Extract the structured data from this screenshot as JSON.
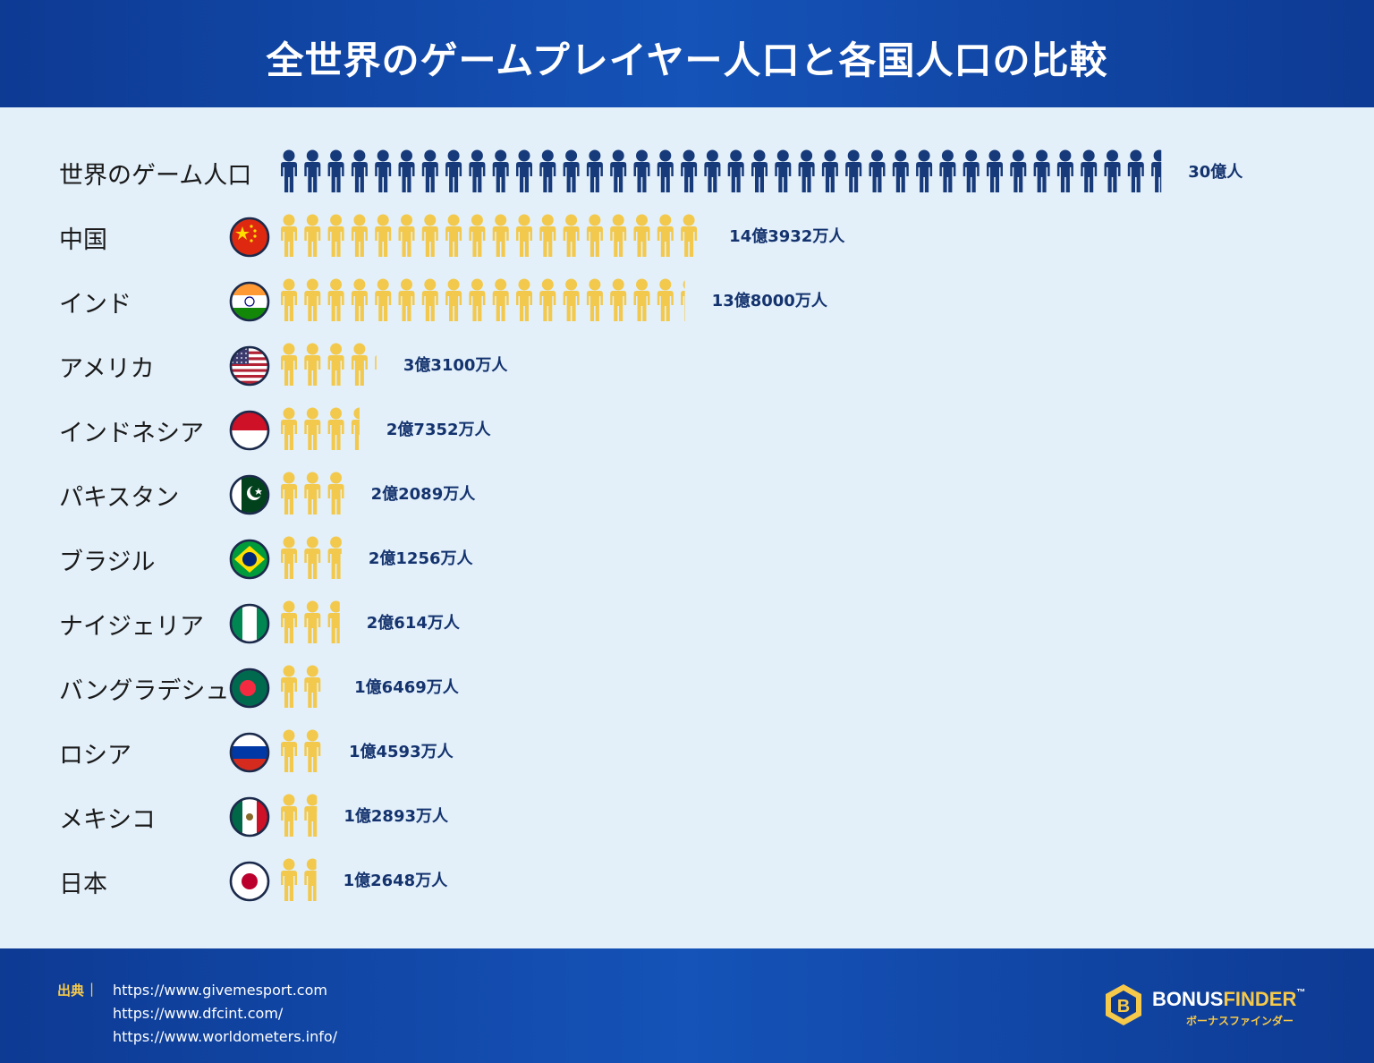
{
  "title": "全世界のゲームプレイヤー人口と各国人口の比較",
  "colors": {
    "header_bg": "#0d3a93",
    "chart_bg": "#e3f0fa",
    "world_icon": "#173a7a",
    "country_icon": "#f2c94c",
    "value_text": "#14336e",
    "source_label": "#f6c94a"
  },
  "chart_data": {
    "type": "pictogram-bar",
    "unit_per_icon_oku": 0.8,
    "rows": [
      {
        "label": "世界のゲーム人口",
        "value_oku": 30,
        "value_text": "30億人",
        "kind": "world",
        "flag": "none"
      },
      {
        "label": "中国",
        "value_oku": 14.3932,
        "value_text": "14億3932万人",
        "kind": "country",
        "flag": "china"
      },
      {
        "label": "インド",
        "value_oku": 13.8,
        "value_text": "13億8000万人",
        "kind": "country",
        "flag": "india"
      },
      {
        "label": "アメリカ",
        "value_oku": 3.31,
        "value_text": "3億3100万人",
        "kind": "country",
        "flag": "usa"
      },
      {
        "label": "インドネシア",
        "value_oku": 2.7352,
        "value_text": "2億7352万人",
        "kind": "country",
        "flag": "indonesia"
      },
      {
        "label": "パキスタン",
        "value_oku": 2.2089,
        "value_text": "2億2089万人",
        "kind": "country",
        "flag": "pakistan"
      },
      {
        "label": "ブラジル",
        "value_oku": 2.1256,
        "value_text": "2億1256万人",
        "kind": "country",
        "flag": "brazil"
      },
      {
        "label": "ナイジェリア",
        "value_oku": 2.0614,
        "value_text": "2億614万人",
        "kind": "country",
        "flag": "nigeria"
      },
      {
        "label": "バングラデシュ",
        "value_oku": 1.6469,
        "value_text": "1億6469万人",
        "kind": "country",
        "flag": "bangladesh"
      },
      {
        "label": "ロシア",
        "value_oku": 1.4593,
        "value_text": "1億4593万人",
        "kind": "country",
        "flag": "russia"
      },
      {
        "label": "メキシコ",
        "value_oku": 1.2893,
        "value_text": "1億2893万人",
        "kind": "country",
        "flag": "mexico"
      },
      {
        "label": "日本",
        "value_oku": 1.2648,
        "value_text": "1億2648万人",
        "kind": "country",
        "flag": "japan"
      }
    ]
  },
  "footer": {
    "source_label": "出典",
    "source_sep": "|",
    "sources": [
      "https://www.givemesport.com",
      "https://www.dfcint.com/",
      "https://www.worldometers.info/"
    ],
    "logo": {
      "icon": "hexagon-b-icon",
      "brand_part1": "BONUS",
      "brand_part2": "FINDER",
      "tm": "™",
      "sub": "ボーナスファインダー"
    }
  }
}
